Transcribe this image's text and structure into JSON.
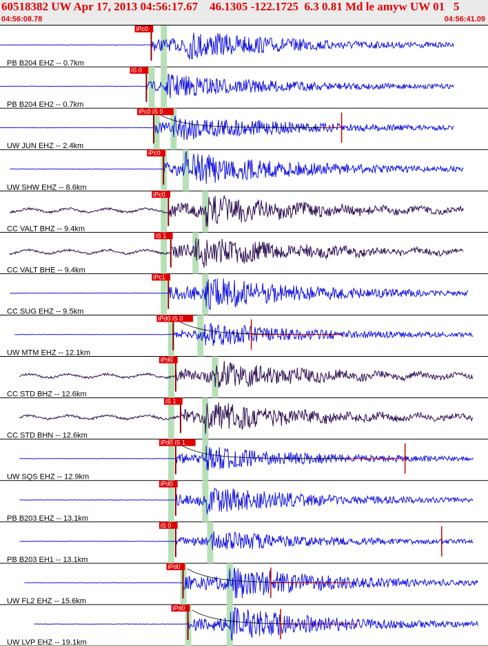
{
  "header": {
    "title": "60518382 UW Apr 17, 2013 04:56:17.67    46.1305 -122.1725  6.3 0.81 Md le amyw UW 01   5",
    "start_time": "04:56:08.78",
    "end_time": "04:56:41.09"
  },
  "colors": {
    "trace_vertical": "#1010e0",
    "trace_horizontal": "#2a0a50",
    "pick_box": "#e00000",
    "pick_bar": "#b8e0b8",
    "amp_line": "#c00000"
  },
  "chart_data": {
    "type": "seismogram",
    "time_range": [
      "04:56:08.78",
      "04:56:41.09"
    ],
    "traces": [
      {
        "label": "PB B204 EHZ -- 0.7km",
        "component": "Z",
        "pick": "iPc0",
        "start": 0.0,
        "end": 0.93,
        "p": 0.31,
        "s": null,
        "bar": 0.335,
        "amp": 0.9,
        "spikes": [],
        "coda": false
      },
      {
        "label": "PB B204 EH2 -- 0.7km",
        "component": "Z",
        "pick": "iS 0",
        "start": 0.0,
        "end": 0.93,
        "p": 0.3,
        "s": 0.335,
        "bar": 0.31,
        "amp": 0.7,
        "spikes": [],
        "coda": false
      },
      {
        "label": "UW JUN EHZ -- 2.4km",
        "component": "Z",
        "pick": "iPc0 iS 0",
        "start": 0.0,
        "end": 0.93,
        "p": 0.315,
        "s": 0.355,
        "bar": 0.32,
        "amp": 0.8,
        "spikes": [
          0.7
        ],
        "coda": true
      },
      {
        "label": "UW SHW EHZ -- 8.6km",
        "component": "Z",
        "pick": "iPc0",
        "start": 0.02,
        "end": 0.95,
        "p": 0.335,
        "s": 0.38,
        "bar": 0.335,
        "amp": 1.0,
        "spikes": [],
        "coda": false
      },
      {
        "label": "CC VALT BHZ -- 9.4km",
        "component": "H",
        "pick": "iPc0",
        "start": 0.02,
        "end": 0.95,
        "p": 0.345,
        "s": 0.42,
        "bar": 0.335,
        "amp": 0.9,
        "spikes": [],
        "coda": false
      },
      {
        "label": "CC VALT BHE -- 9.4km",
        "component": "H",
        "pick": "iS 1",
        "start": 0.02,
        "end": 0.95,
        "p": 0.35,
        "s": 0.4,
        "bar": 0.335,
        "amp": 0.9,
        "spikes": [],
        "coda": false
      },
      {
        "label": "CC SUG EHZ -- 9.5km",
        "component": "Z",
        "pick": "iPc1",
        "start": 0.02,
        "end": 0.96,
        "p": 0.345,
        "s": 0.42,
        "bar": 0.335,
        "amp": 1.0,
        "spikes": [],
        "coda": false
      },
      {
        "label": "UW MTM EHZ -- 12.1km",
        "component": "Z",
        "pick": "iPd0 iS 0",
        "start": 0.03,
        "end": 0.97,
        "p": 0.355,
        "s": 0.41,
        "bar": 0.35,
        "amp": 0.7,
        "spikes": [
          0.515
        ],
        "coda": true
      },
      {
        "label": "CC STD BHZ -- 12.6km",
        "component": "H",
        "pick": "iPd0",
        "start": 0.04,
        "end": 0.97,
        "p": 0.36,
        "s": 0.44,
        "bar": 0.35,
        "amp": 0.8,
        "spikes": [],
        "coda": false
      },
      {
        "label": "CC STD BHN -- 12.6km",
        "component": "H",
        "pick": "iS 1",
        "start": 0.04,
        "end": 0.97,
        "p": 0.37,
        "s": 0.42,
        "bar": 0.35,
        "amp": 0.9,
        "spikes": [],
        "coda": false
      },
      {
        "label": "UW SQS EHZ -- 12.9km",
        "component": "Z",
        "pick": "iPd0 iS 1",
        "start": 0.04,
        "end": 0.97,
        "p": 0.36,
        "s": 0.42,
        "bar": 0.35,
        "amp": 0.7,
        "spikes": [
          0.83
        ],
        "coda": true
      },
      {
        "label": "PB B203 EHZ -- 13.1km",
        "component": "Z",
        "pick": "iPd0",
        "start": 0.04,
        "end": 0.97,
        "p": 0.36,
        "s": 0.42,
        "bar": 0.35,
        "amp": 0.8,
        "spikes": [],
        "coda": false
      },
      {
        "label": "PB B203 EH1 -- 13.1km",
        "component": "Z",
        "pick": "iS 0",
        "start": 0.04,
        "end": 0.97,
        "p": 0.36,
        "s": 0.43,
        "bar": 0.35,
        "amp": 0.6,
        "spikes": [
          0.905
        ],
        "coda": false
      },
      {
        "label": "UW FL2 EHZ -- 15.6km",
        "component": "Z",
        "pick": "iPd0",
        "start": 0.05,
        "end": 0.98,
        "p": 0.375,
        "s": 0.47,
        "bar": 0.375,
        "amp": 1.0,
        "spikes": [
          0.555
        ],
        "coda": true
      },
      {
        "label": "UW LVP EHZ -- 19.1km",
        "component": "Z",
        "pick": "iPd0",
        "start": 0.07,
        "end": 0.98,
        "p": 0.385,
        "s": 0.47,
        "bar": 0.385,
        "amp": 1.0,
        "spikes": [
          0.575
        ],
        "coda": true
      }
    ]
  }
}
